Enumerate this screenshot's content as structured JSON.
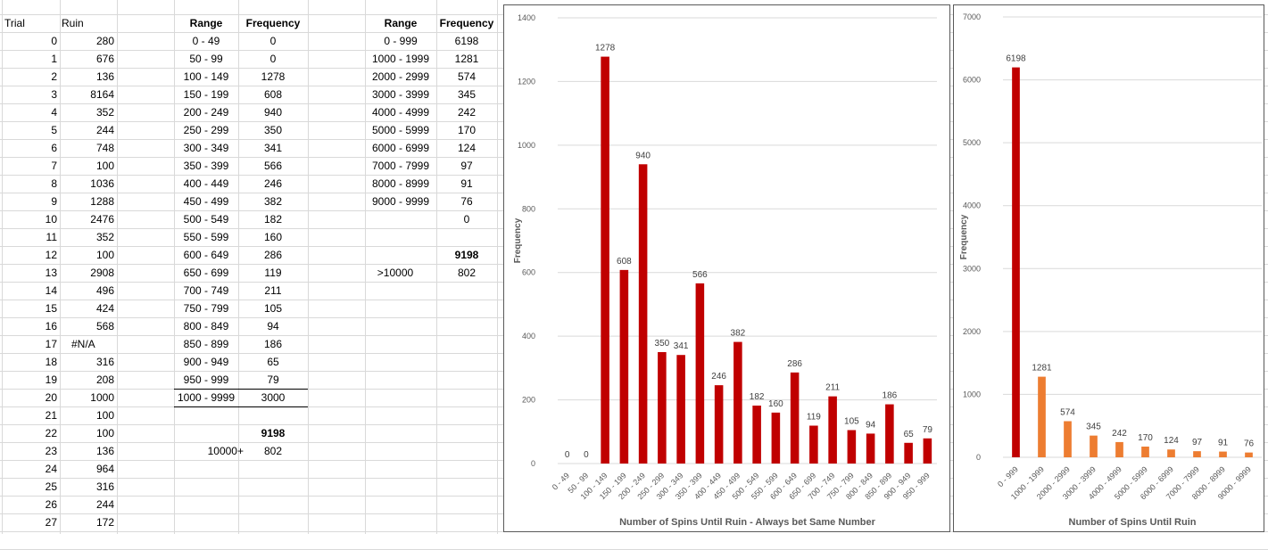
{
  "sheet": {
    "trial_header": "Trial",
    "ruin_header": "Ruin",
    "trials": [
      {
        "t": "0",
        "r": "280"
      },
      {
        "t": "1",
        "r": "676"
      },
      {
        "t": "2",
        "r": "136"
      },
      {
        "t": "3",
        "r": "8164"
      },
      {
        "t": "4",
        "r": "352"
      },
      {
        "t": "5",
        "r": "244"
      },
      {
        "t": "6",
        "r": "748"
      },
      {
        "t": "7",
        "r": "100"
      },
      {
        "t": "8",
        "r": "1036"
      },
      {
        "t": "9",
        "r": "1288"
      },
      {
        "t": "10",
        "r": "2476"
      },
      {
        "t": "11",
        "r": "352"
      },
      {
        "t": "12",
        "r": "100"
      },
      {
        "t": "13",
        "r": "2908"
      },
      {
        "t": "14",
        "r": "496"
      },
      {
        "t": "15",
        "r": "424"
      },
      {
        "t": "16",
        "r": "568"
      },
      {
        "t": "17",
        "r": "#N/A"
      },
      {
        "t": "18",
        "r": "316"
      },
      {
        "t": "19",
        "r": "208"
      },
      {
        "t": "20",
        "r": "1000"
      },
      {
        "t": "21",
        "r": "100"
      },
      {
        "t": "22",
        "r": "100"
      },
      {
        "t": "23",
        "r": "136"
      },
      {
        "t": "24",
        "r": "964"
      },
      {
        "t": "25",
        "r": "316"
      },
      {
        "t": "26",
        "r": "244"
      },
      {
        "t": "27",
        "r": "172"
      }
    ],
    "table1": {
      "range_header": "Range",
      "freq_header": "Frequency",
      "rows": [
        {
          "range": "0 - 49",
          "freq": "0"
        },
        {
          "range": "50 - 99",
          "freq": "0"
        },
        {
          "range": "100 - 149",
          "freq": "1278"
        },
        {
          "range": "150 - 199",
          "freq": "608"
        },
        {
          "range": "200 - 249",
          "freq": "940"
        },
        {
          "range": "250 - 299",
          "freq": "350"
        },
        {
          "range": "300 - 349",
          "freq": "341"
        },
        {
          "range": "350 - 399",
          "freq": "566"
        },
        {
          "range": "400 - 449",
          "freq": "246"
        },
        {
          "range": "450 - 499",
          "freq": "382"
        },
        {
          "range": "500 - 549",
          "freq": "182"
        },
        {
          "range": "550 - 599",
          "freq": "160"
        },
        {
          "range": "600 - 649",
          "freq": "286"
        },
        {
          "range": "650 - 699",
          "freq": "119"
        },
        {
          "range": "700 - 749",
          "freq": "211"
        },
        {
          "range": "750 - 799",
          "freq": "105"
        },
        {
          "range": "800 - 849",
          "freq": "94"
        },
        {
          "range": "850 - 899",
          "freq": "186"
        },
        {
          "range": "900 - 949",
          "freq": "65"
        },
        {
          "range": "950 - 999",
          "freq": "79"
        },
        {
          "range": "1000 - 9999",
          "freq": "3000"
        }
      ],
      "total": "9198",
      "over_label": "10000+",
      "over_value": "802"
    },
    "table2": {
      "range_header": "Range",
      "freq_header": "Frequency",
      "rows": [
        {
          "range": "0 - 999",
          "freq": "6198"
        },
        {
          "range": "1000 - 1999",
          "freq": "1281"
        },
        {
          "range": "2000 - 2999",
          "freq": "574"
        },
        {
          "range": "3000 - 3999",
          "freq": "345"
        },
        {
          "range": "4000 - 4999",
          "freq": "242"
        },
        {
          "range": "5000 - 5999",
          "freq": "170"
        },
        {
          "range": "6000 - 6999",
          "freq": "124"
        },
        {
          "range": "7000 - 7999",
          "freq": "97"
        },
        {
          "range": "8000 - 8999",
          "freq": "91"
        },
        {
          "range": "9000 - 9999",
          "freq": "76"
        }
      ],
      "blank_value": "0",
      "total": "9198",
      "over_label": ">10000",
      "over_value": "802"
    }
  },
  "chart_data": [
    {
      "type": "bar",
      "categories": [
        "0 - 49",
        "50 - 99",
        "100 - 149",
        "150 - 199",
        "200 - 249",
        "250 - 299",
        "300 - 349",
        "350 - 399",
        "400 - 449",
        "450 - 499",
        "500 - 549",
        "550 - 599",
        "600 - 649",
        "650 - 699",
        "700 - 749",
        "750 - 799",
        "800 - 849",
        "850 - 899",
        "900 - 949",
        "950 - 999"
      ],
      "values": [
        0,
        0,
        1278,
        608,
        940,
        350,
        341,
        566,
        246,
        382,
        182,
        160,
        286,
        119,
        211,
        105,
        94,
        186,
        65,
        79
      ],
      "title": "",
      "xlabel": "Number of Spins Until Ruin - Always bet Same Number",
      "ylabel": "Frequency",
      "ylim": [
        0,
        1400
      ],
      "yticks": [
        0,
        200,
        400,
        600,
        800,
        1000,
        1200,
        1400
      ],
      "color": "#c00000",
      "grid": true
    },
    {
      "type": "bar",
      "categories": [
        "0 - 999",
        "1000 - 1999",
        "2000 - 2999",
        "3000 - 3999",
        "4000 - 4999",
        "5000 - 5999",
        "6000 - 6999",
        "7000 - 7999",
        "8000 - 8999",
        "9000 - 9999"
      ],
      "values": [
        6198,
        1281,
        574,
        345,
        242,
        170,
        124,
        97,
        91,
        76
      ],
      "title": "",
      "xlabel": "Number of Spins Until Ruin",
      "ylabel": "Frequency",
      "ylim": [
        0,
        7000
      ],
      "yticks": [
        0,
        1000,
        2000,
        3000,
        4000,
        5000,
        6000,
        7000
      ],
      "colors": [
        "#c00000",
        "#ed7d31"
      ],
      "grid": true
    }
  ]
}
